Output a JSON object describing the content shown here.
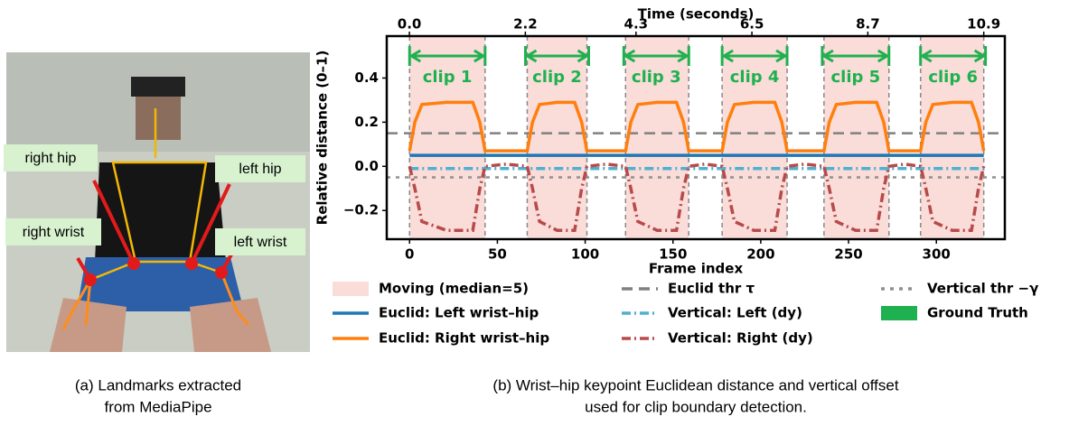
{
  "panel_a": {
    "labels": [
      "right hip",
      "left hip",
      "right wrist",
      "left wrist"
    ],
    "caption": [
      "(a) Landmarks extracted",
      "from MediaPipe"
    ]
  },
  "chart_data": {
    "type": "line",
    "caption": [
      "(b) Wrist–hip keypoint Euclidean distance and vertical offset",
      "used for clip boundary detection."
    ],
    "xlabel": "Frame index",
    "ylabel": "Relative distance (0–1)",
    "x2label": "Time (seconds)",
    "xlim": [
      -13,
      339
    ],
    "xticks": [
      0,
      50,
      100,
      150,
      200,
      250,
      300
    ],
    "x2lim": [
      -0.43,
      11.3
    ],
    "x2ticks": [
      {
        "value": 0,
        "label": "0.0"
      },
      2.2,
      4.3,
      6.5,
      8.7,
      10.9
    ],
    "ylim": [
      -0.33,
      0.59
    ],
    "yticks": [
      {
        "value": -0.2,
        "label": "−0.2"
      },
      {
        "value": 0,
        "label": "0.0"
      },
      0.2,
      0.4
    ],
    "x": [
      0,
      3,
      7,
      21,
      36,
      40,
      43,
      55,
      67,
      70,
      74,
      84,
      94,
      98,
      101,
      112,
      123,
      126,
      130,
      141,
      152,
      156,
      159,
      168,
      178,
      181,
      185,
      196,
      208,
      212,
      215,
      225,
      236,
      239,
      243,
      254,
      266,
      270,
      273,
      282,
      291,
      294,
      298,
      309,
      320,
      324,
      327
    ],
    "moving": {
      "name": "Moving (median=5)",
      "color": "#fadcd9",
      "spans": [
        [
          0,
          43
        ],
        [
          67,
          101
        ],
        [
          123,
          159
        ],
        [
          178,
          215
        ],
        [
          236,
          273
        ],
        [
          291,
          327
        ]
      ]
    },
    "ground_truth": {
      "name": "Ground Truth",
      "color": "#1fb14f",
      "labels": [
        "clip 1",
        "clip 2",
        "clip 3",
        "clip 4",
        "clip 5",
        "clip 6"
      ],
      "spans": [
        [
          0,
          43
        ],
        [
          66,
          102
        ],
        [
          122,
          159
        ],
        [
          178,
          215
        ],
        [
          235,
          273
        ],
        [
          291,
          328
        ]
      ]
    },
    "thresholds": [
      {
        "name": "Euclid thr τ",
        "value": 0.15,
        "color": "#808080",
        "style": "dashed"
      },
      {
        "name": "Vertical thr −γ",
        "value": -0.05,
        "color": "#909090",
        "style": "dotted"
      }
    ],
    "series": [
      {
        "name": "Euclid: Left wrist–hip",
        "color": "#1f77b4",
        "style": "solid",
        "values": [
          0.05,
          0.05,
          0.05,
          0.05,
          0.05,
          0.05,
          0.05,
          0.05,
          0.05,
          0.05,
          0.05,
          0.05,
          0.05,
          0.05,
          0.05,
          0.05,
          0.05,
          0.05,
          0.05,
          0.05,
          0.05,
          0.05,
          0.05,
          0.05,
          0.05,
          0.05,
          0.05,
          0.05,
          0.05,
          0.05,
          0.05,
          0.05,
          0.05,
          0.05,
          0.05,
          0.05,
          0.05,
          0.05,
          0.05,
          0.05,
          0.05,
          0.05,
          0.05,
          0.05,
          0.05,
          0.05,
          0.05
        ]
      },
      {
        "name": "Euclid: Right wrist–hip",
        "color": "#ff7f0e",
        "style": "solid",
        "values": [
          0.07,
          0.2,
          0.28,
          0.29,
          0.29,
          0.2,
          0.07,
          0.07,
          0.07,
          0.2,
          0.28,
          0.29,
          0.29,
          0.2,
          0.07,
          0.07,
          0.07,
          0.2,
          0.28,
          0.29,
          0.29,
          0.2,
          0.07,
          0.07,
          0.07,
          0.2,
          0.28,
          0.29,
          0.29,
          0.2,
          0.07,
          0.07,
          0.07,
          0.2,
          0.28,
          0.29,
          0.29,
          0.2,
          0.07,
          0.07,
          0.07,
          0.2,
          0.28,
          0.29,
          0.29,
          0.2,
          0.07
        ]
      },
      {
        "name": "Vertical: Left (dy)",
        "color": "#4fb0cf",
        "style": "dashdot",
        "values": [
          -0.01,
          -0.01,
          -0.01,
          -0.01,
          -0.01,
          -0.01,
          -0.01,
          -0.01,
          -0.01,
          -0.01,
          -0.01,
          -0.01,
          -0.01,
          -0.01,
          -0.01,
          -0.01,
          -0.01,
          -0.01,
          -0.01,
          -0.01,
          -0.01,
          -0.01,
          -0.01,
          -0.01,
          -0.01,
          -0.01,
          -0.01,
          -0.01,
          -0.01,
          -0.01,
          -0.01,
          -0.01,
          -0.01,
          -0.01,
          -0.01,
          -0.01,
          -0.01,
          -0.01,
          -0.01,
          -0.01,
          -0.01,
          -0.01,
          -0.01,
          -0.01,
          -0.01,
          -0.01,
          -0.01
        ]
      },
      {
        "name": "Vertical: Right (dy)",
        "color": "#b84a4a",
        "style": "dashdot",
        "values": [
          0,
          -0.1,
          -0.25,
          -0.29,
          -0.29,
          -0.1,
          0,
          0.01,
          0,
          -0.1,
          -0.25,
          -0.29,
          -0.29,
          -0.1,
          0,
          0.01,
          0,
          -0.1,
          -0.25,
          -0.29,
          -0.29,
          -0.1,
          0,
          0.01,
          0,
          -0.1,
          -0.25,
          -0.29,
          -0.29,
          -0.1,
          0,
          0.01,
          0,
          -0.1,
          -0.25,
          -0.29,
          -0.29,
          -0.1,
          0,
          0.01,
          0,
          -0.1,
          -0.25,
          -0.29,
          -0.29,
          -0.1,
          0
        ]
      }
    ]
  }
}
